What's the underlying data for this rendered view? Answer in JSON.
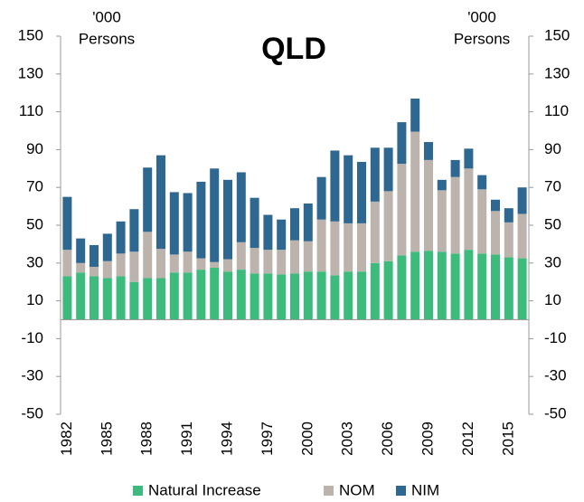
{
  "chart_data": {
    "type": "stacked_bar",
    "title": "QLD",
    "ylabel": [
      "'000",
      "Persons"
    ],
    "y2label": [
      "'000",
      "Persons"
    ],
    "categories": [
      "1982",
      null,
      null,
      "1985",
      null,
      null,
      "1988",
      null,
      null,
      "1991",
      null,
      null,
      "1994",
      null,
      null,
      "1997",
      null,
      null,
      "2000",
      null,
      null,
      "2003",
      null,
      null,
      "2006",
      null,
      null,
      "2009",
      null,
      null,
      "2012",
      null,
      null,
      "2015",
      null
    ],
    "series": [
      {
        "name": "Natural Increase",
        "color": "#3dbb7d",
        "values": [
          23,
          25,
          23,
          22,
          23,
          20,
          22,
          22,
          25,
          25,
          26.5,
          27.5,
          25.5,
          26.5,
          24.5,
          24.5,
          24,
          24.5,
          25.5,
          25.5,
          23.5,
          25.5,
          25.5,
          30,
          31,
          34,
          36,
          36.5,
          36,
          35,
          37,
          35,
          34.5,
          33,
          32.5
        ]
      },
      {
        "name": "NOM",
        "color": "#bcb4ac",
        "values": [
          14,
          5,
          5,
          9,
          12,
          16,
          24.5,
          15.5,
          9.5,
          11,
          6,
          3,
          6.5,
          14.5,
          13.5,
          12.5,
          13,
          17.5,
          16,
          27.5,
          28.5,
          25.5,
          25.5,
          32.5,
          37,
          48.5,
          63.5,
          48,
          32.5,
          40.5,
          43,
          34,
          23,
          18.5,
          23.5
        ]
      },
      {
        "name": "NIM",
        "color": "#2e6790",
        "values": [
          28,
          13,
          11.5,
          14.5,
          17,
          22.5,
          34,
          49.5,
          33,
          31,
          40.5,
          49.5,
          42,
          37,
          26.5,
          18.5,
          16,
          17,
          20,
          22.5,
          37.5,
          36,
          32.5,
          28.5,
          23,
          22,
          17.5,
          9.5,
          5.5,
          9,
          10.5,
          7.5,
          6,
          7.5,
          14
        ]
      }
    ],
    "ylim": [
      -50,
      150
    ],
    "yticks": [
      -50,
      -30,
      -10,
      10,
      30,
      50,
      70,
      90,
      110,
      130,
      150
    ],
    "y2lim": [
      -50,
      150
    ],
    "y2ticks": [
      -50,
      -30,
      -10,
      10,
      30,
      50,
      70,
      90,
      110,
      130,
      150
    ],
    "legend": "bottom"
  }
}
